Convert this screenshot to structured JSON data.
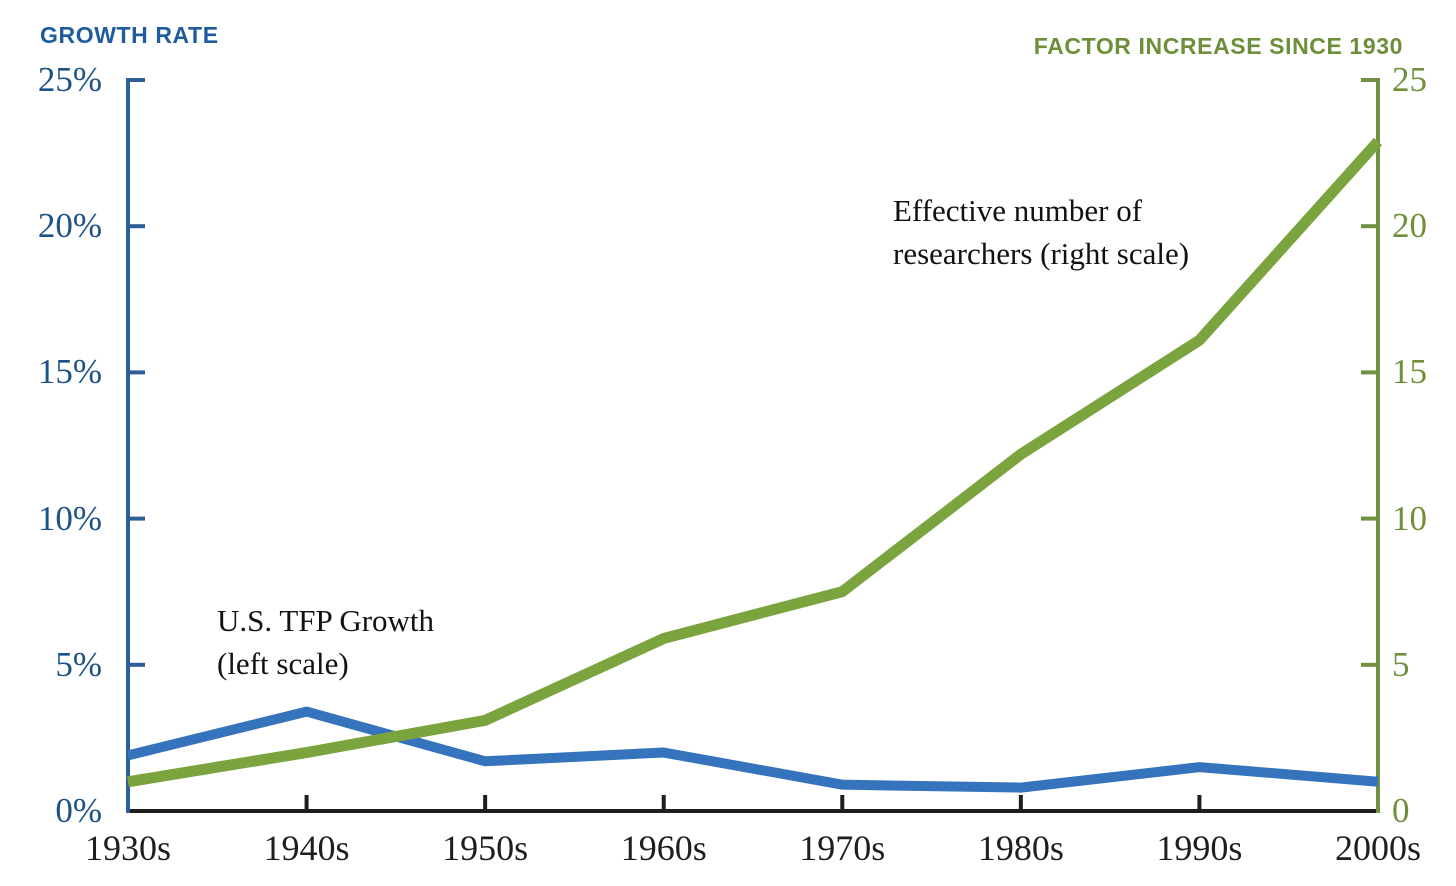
{
  "titles": {
    "left_axis": "GROWTH RATE",
    "right_axis": "FACTOR INCREASE SINCE 1930"
  },
  "annotations": {
    "tfp_line1": "U.S. TFP Growth",
    "tfp_line2": "(left scale)",
    "researchers_line1": "Effective number of",
    "researchers_line2": "researchers (right scale)"
  },
  "chart_data": {
    "type": "line",
    "categories": [
      "1930s",
      "1940s",
      "1950s",
      "1960s",
      "1970s",
      "1980s",
      "1990s",
      "2000s"
    ],
    "series": [
      {
        "name": "U.S. TFP Growth",
        "scale": "left",
        "unit": "percent growth rate",
        "color": "#3574bc",
        "stroke_width": 10,
        "values": [
          1.9,
          3.4,
          1.7,
          2.0,
          0.9,
          0.8,
          1.5,
          1.0
        ]
      },
      {
        "name": "Effective number of researchers",
        "scale": "right",
        "unit": "factor increase since 1930",
        "color": "#7ba43f",
        "stroke_width": 11,
        "values": [
          1.0,
          2.0,
          3.1,
          5.9,
          7.5,
          12.2,
          16.1,
          22.9
        ]
      }
    ],
    "left_axis": {
      "title": "GROWTH RATE",
      "range": [
        0,
        25
      ],
      "tick_step": 5,
      "tick_labels": [
        "0%",
        "5%",
        "10%",
        "15%",
        "20%",
        "25%"
      ],
      "axis_color": "#2c5f96",
      "text_color": "#1d5286"
    },
    "right_axis": {
      "title": "FACTOR INCREASE SINCE 1930",
      "range": [
        0,
        25
      ],
      "tick_step": 5,
      "tick_labels": [
        "0",
        "5",
        "10",
        "15",
        "20",
        "25"
      ],
      "axis_color": "#6f9140",
      "text_color": "#6f8f3b"
    },
    "x_axis": {
      "tick_labels": [
        "1930s",
        "1940s",
        "1950s",
        "1960s",
        "1970s",
        "1980s",
        "1990s",
        "2000s"
      ],
      "axis_color": "#1e1e1e",
      "text_color": "#1e1e1e"
    },
    "grid": false,
    "legend_position": "inline-annotations"
  }
}
